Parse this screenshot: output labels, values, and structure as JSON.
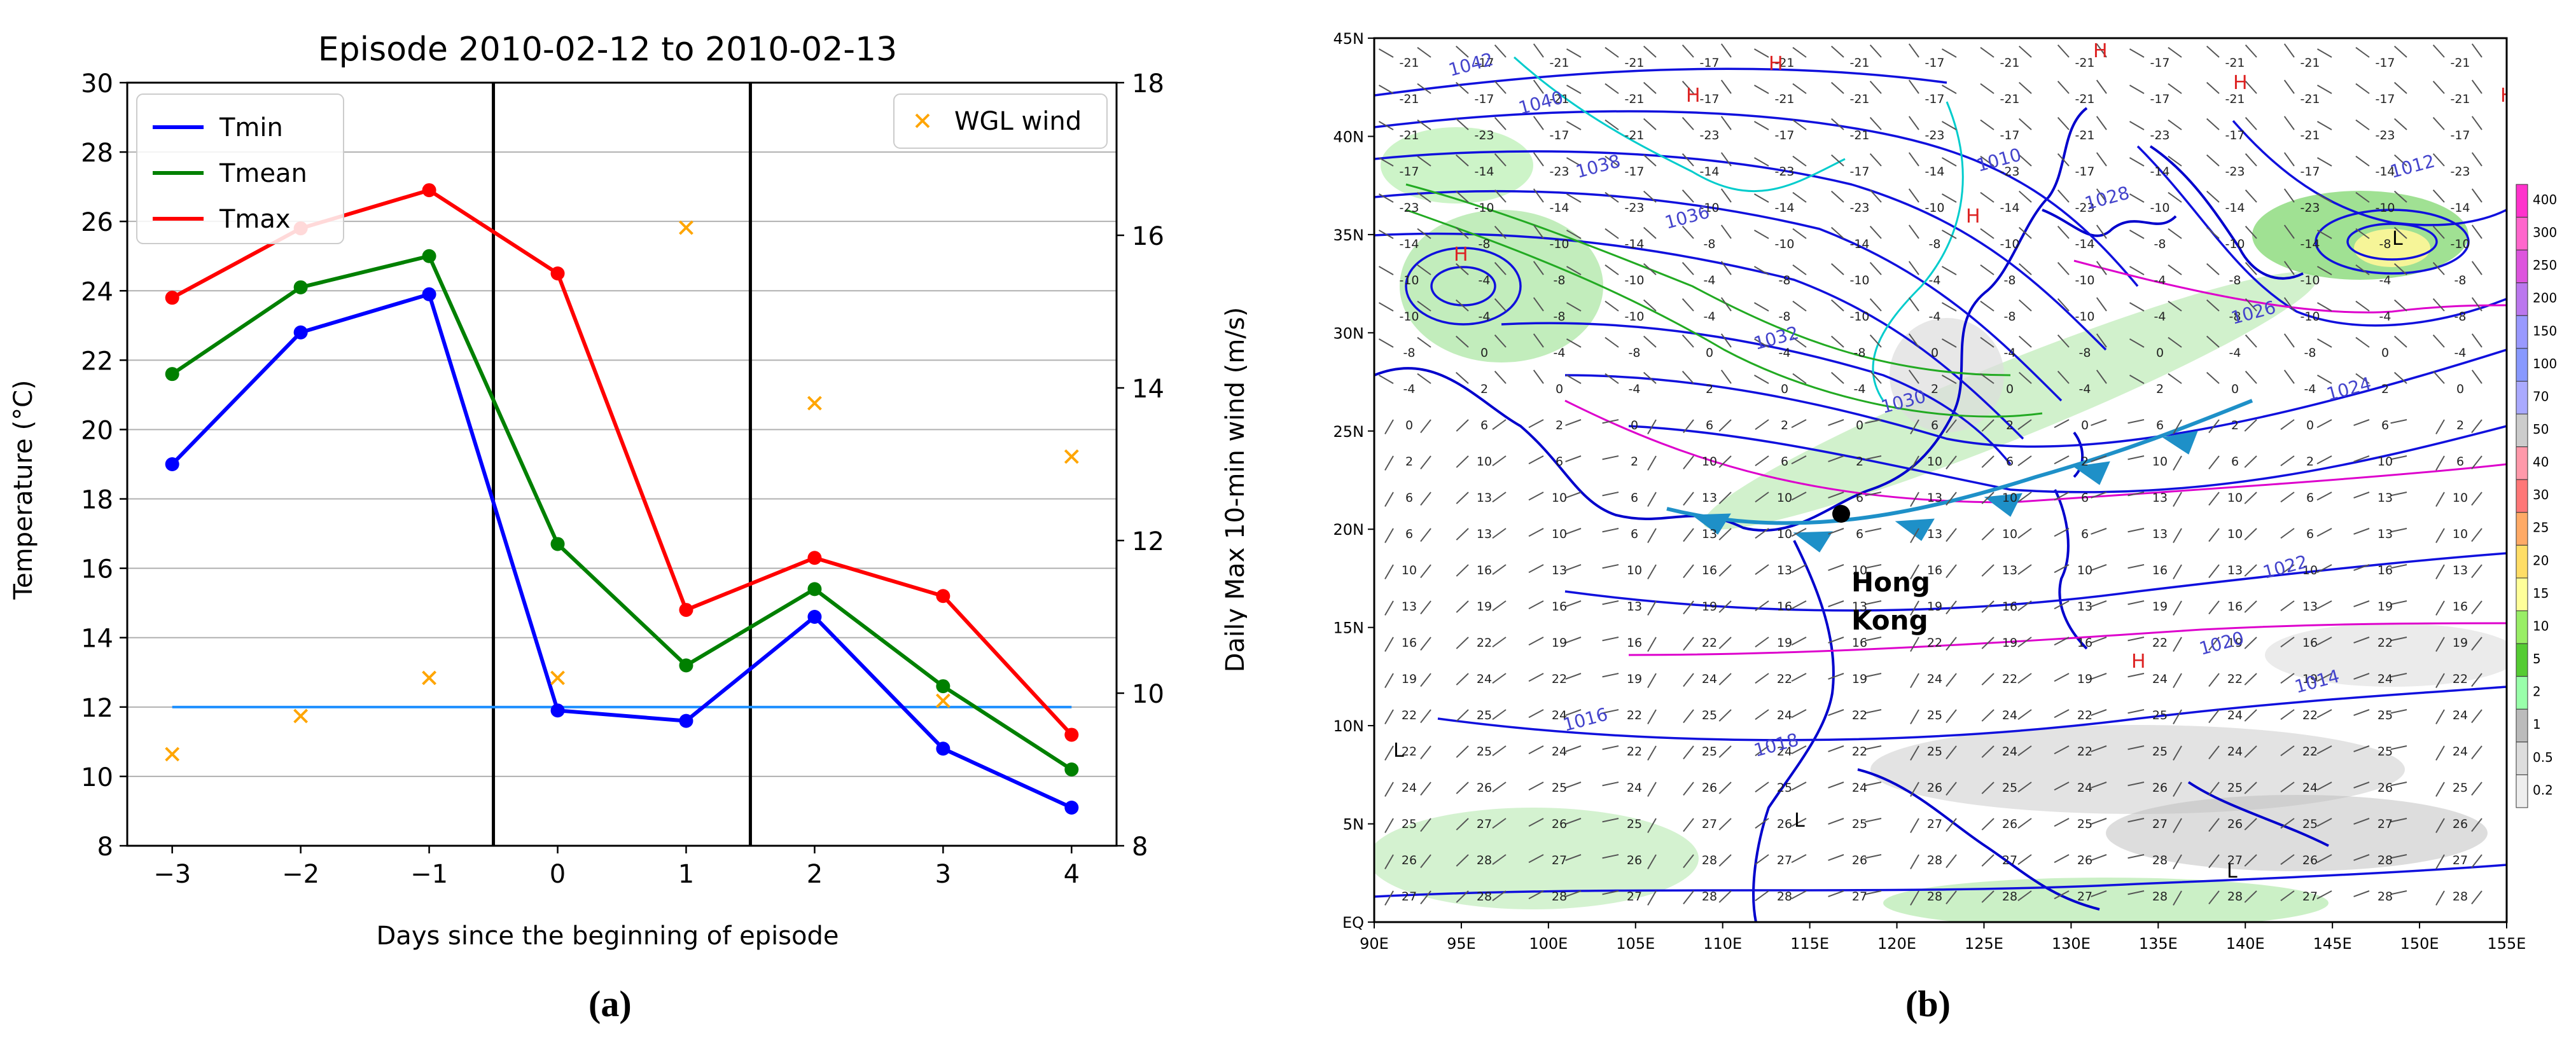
{
  "panel_a_label": "(a)",
  "panel_b_label": "(b)",
  "chart_data": {
    "type": "line",
    "title": "Episode 2010-02-12 to 2010-02-13",
    "xlabel": "Days since the beginning of episode",
    "ylabel": "Temperature (°C)",
    "y2label": "Daily Max 10-min wind (m/s)",
    "x": [
      -3,
      -2,
      -1,
      0,
      1,
      2,
      3,
      4
    ],
    "x_ticks": [
      "-3",
      "-2",
      "-1",
      "0",
      "1",
      "2",
      "3",
      "4"
    ],
    "xlim": [
      -3.35,
      4.35
    ],
    "ylim": [
      8,
      30
    ],
    "y_ticks": [
      "8",
      "10",
      "12",
      "14",
      "16",
      "18",
      "20",
      "22",
      "24",
      "26",
      "28",
      "30"
    ],
    "y2lim": [
      8,
      18
    ],
    "y2_ticks": [
      "8",
      "10",
      "12",
      "14",
      "16",
      "18"
    ],
    "grid": "horizontal",
    "series": [
      {
        "name": "Tmin",
        "color": "#0000ff",
        "values": [
          19.0,
          22.8,
          23.9,
          11.9,
          11.6,
          14.6,
          10.8,
          9.1
        ]
      },
      {
        "name": "Tmean",
        "color": "#008000",
        "values": [
          21.6,
          24.1,
          25.0,
          16.7,
          13.2,
          15.4,
          12.6,
          10.2
        ]
      },
      {
        "name": "Tmax",
        "color": "#ff0000",
        "values": [
          23.8,
          25.8,
          26.9,
          24.5,
          14.8,
          16.3,
          15.2,
          11.2
        ]
      }
    ],
    "wind_series": {
      "name": "WGL wind",
      "color": "#ffa500",
      "values": [
        9.2,
        9.7,
        10.2,
        10.2,
        16.1,
        13.8,
        9.9,
        13.1
      ]
    },
    "reference_line": {
      "y": 12.0,
      "color": "#1e90ff"
    },
    "episode_bounds": [
      -0.5,
      1.5
    ],
    "legend_left": "top-left",
    "legend_right": "top-right"
  },
  "map": {
    "lat_labels": [
      "45N",
      "40N",
      "35N",
      "30N",
      "25N",
      "20N",
      "15N",
      "10N",
      "5N",
      "EQ"
    ],
    "lon_labels": [
      "90E",
      "95E",
      "100E",
      "105E",
      "110E",
      "115E",
      "120E",
      "125E",
      "130E",
      "135E",
      "140E",
      "145E",
      "150E",
      "155E"
    ],
    "place_label_1": "Hong",
    "place_label_2": "Kong",
    "colorbar_labels": [
      "400",
      "300",
      "250",
      "200",
      "150",
      "100",
      "70",
      "50",
      "40",
      "30",
      "25",
      "20",
      "15",
      "10",
      "5",
      "2",
      "1",
      "0.5",
      "0.2"
    ],
    "colorbar_colors": [
      "#ff33cc",
      "#ff66cc",
      "#dd55dd",
      "#bb77ee",
      "#9999ff",
      "#8899ff",
      "#aaaaff",
      "#cccccc",
      "#ff99aa",
      "#ff7777",
      "#ffaa66",
      "#ffdd66",
      "#ffff99",
      "#99ee66",
      "#55cc33",
      "#99ffaa",
      "#bbbbbb",
      "#dddddd",
      "#eeeeee"
    ],
    "isobar_labels": [
      "1042",
      "1040",
      "1038",
      "1036",
      "1032",
      "1030",
      "1028",
      "1026",
      "1024",
      "1022",
      "1020",
      "1018",
      "1016",
      "1014",
      "1012",
      "1010"
    ],
    "high_labels": [
      "H",
      "H",
      "H",
      "H",
      "H",
      "H",
      "H",
      "H"
    ],
    "low_labels": [
      "L",
      "L",
      "L",
      "L"
    ],
    "temperature_numbers": [
      "-21",
      "-17",
      "-23",
      "-14",
      "-10",
      "-8",
      "-4",
      "0",
      "2",
      "6",
      "10",
      "13",
      "16",
      "19",
      "22",
      "24",
      "25",
      "26",
      "27",
      "28"
    ]
  }
}
